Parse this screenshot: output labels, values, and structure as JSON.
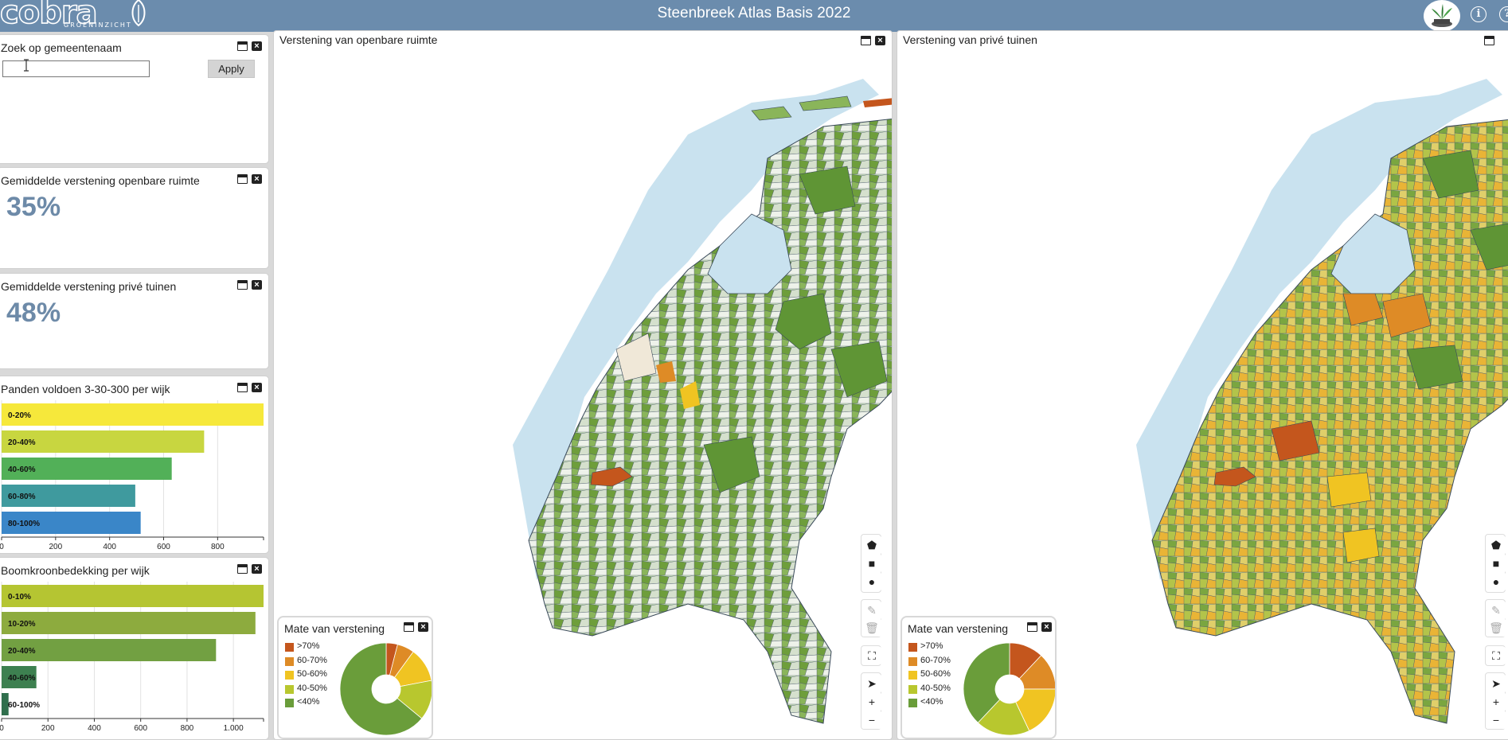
{
  "header": {
    "title": "Steenbreek Atlas Basis 2022",
    "logo_text": "cobra",
    "logo_subtext": "GROENINZICHT",
    "info_icon": "info-icon",
    "help_icon": "help-icon"
  },
  "search_panel": {
    "title": "Zoek op gemeentenaam",
    "input_value": "",
    "apply_label": "Apply"
  },
  "stat_public": {
    "title": "Gemiddelde verstening openbare ruimte",
    "value": "35%"
  },
  "stat_private": {
    "title": "Gemiddelde verstening privé tuinen",
    "value": "48%"
  },
  "chart_panden": {
    "title": "Panden voldoen 3-30-300 per wijk"
  },
  "chart_boomkroon": {
    "title": "Boomkroonbedekking per wijk"
  },
  "map_public": {
    "title": "Verstening van openbare ruimte"
  },
  "map_private": {
    "title": "Verstening van privé tuinen"
  },
  "legend": {
    "title": "Mate van verstening",
    "items": [
      {
        "label": ">70%",
        "color": "#c4561d"
      },
      {
        "label": "60-70%",
        "color": "#de8b26"
      },
      {
        "label": "50-60%",
        "color": "#f0c422"
      },
      {
        "label": "40-50%",
        "color": "#b8c72e"
      },
      {
        "label": "<40%",
        "color": "#6a9d3a"
      }
    ]
  },
  "tools": {
    "polygon": "polygon-icon",
    "rectangle": "rectangle-icon",
    "circle": "circle-icon",
    "edit": "edit-icon",
    "delete": "trash-icon",
    "fullscreen": "fullscreen-icon",
    "locate": "locate-icon",
    "zoom_in": "+",
    "zoom_out": "−"
  },
  "chart_data": [
    {
      "type": "bar",
      "orientation": "horizontal",
      "title": "Panden voldoen 3-30-300 per wijk",
      "categories": [
        "0-20%",
        "20-40%",
        "40-60%",
        "60-80%",
        "80-100%"
      ],
      "values": [
        970,
        750,
        630,
        495,
        515
      ],
      "colors": [
        "#f6e83b",
        "#c8d640",
        "#52b058",
        "#3f9a9e",
        "#3a86c8"
      ],
      "xlim": [
        0,
        970
      ],
      "xticks": [
        0,
        200,
        400,
        600,
        800
      ],
      "xtick_labels": [
        "0",
        "200",
        "400",
        "600",
        "800"
      ],
      "grid": true
    },
    {
      "type": "bar",
      "orientation": "horizontal",
      "title": "Boomkroonbedekking per wijk",
      "categories": [
        "0-10%",
        "10-20%",
        "20-40%",
        "40-60%",
        "60-100%"
      ],
      "values": [
        1130,
        1095,
        925,
        150,
        30
      ],
      "colors": [
        "#b5c532",
        "#8dab3e",
        "#72a042",
        "#3d8050",
        "#2f6e4c"
      ],
      "xlim": [
        0,
        1130
      ],
      "xticks": [
        0,
        200,
        400,
        600,
        800,
        1000
      ],
      "xtick_labels": [
        "0",
        "200",
        "400",
        "600",
        "800",
        "1.000"
      ],
      "grid": true
    },
    {
      "type": "pie",
      "title": "Mate van verstening",
      "categories": [
        ">70%",
        "60-70%",
        "50-60%",
        "40-50%",
        "<40%"
      ],
      "values": [
        4,
        6,
        12,
        14,
        64
      ],
      "colors": [
        "#c4561d",
        "#de8b26",
        "#f0c422",
        "#b8c72e",
        "#6a9d3a"
      ],
      "donut": true
    },
    {
      "type": "pie",
      "title": "Mate van verstening",
      "categories": [
        ">70%",
        "60-70%",
        "50-60%",
        "40-50%",
        "<40%"
      ],
      "values": [
        12,
        13,
        18,
        19,
        38
      ],
      "colors": [
        "#c4561d",
        "#de8b26",
        "#f0c422",
        "#b8c72e",
        "#6a9d3a"
      ],
      "donut": true
    }
  ]
}
